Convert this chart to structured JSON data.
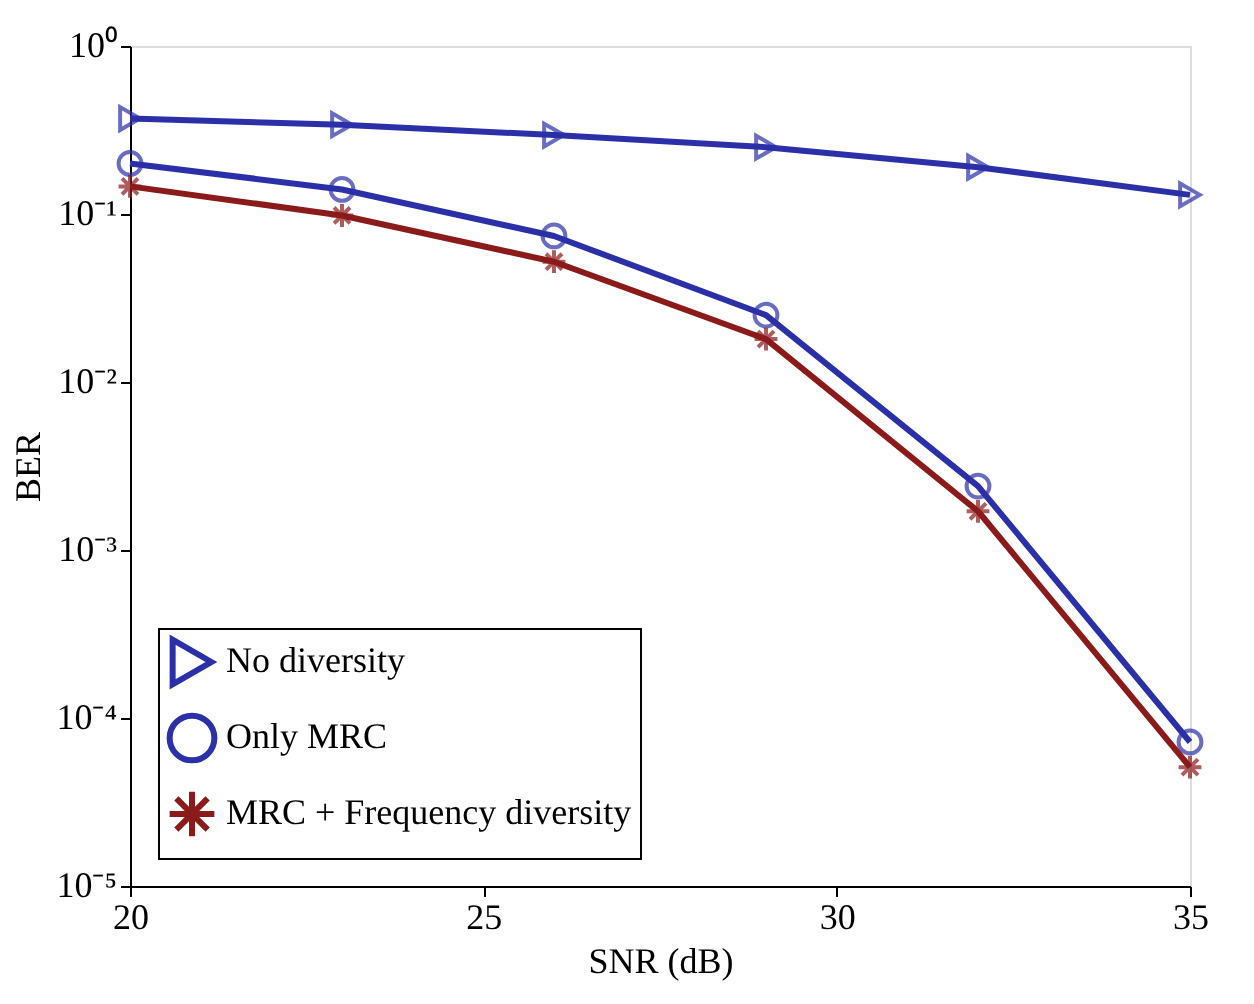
{
  "chart_data": {
    "type": "line",
    "xlabel": "SNR (dB)",
    "ylabel": "BER",
    "log": "y",
    "x": [
      20,
      23,
      26,
      29,
      32,
      35
    ],
    "series": [
      {
        "name": "No diversity",
        "color": "#2b2fa8",
        "marker": "triangle-right",
        "values": [
          0.37,
          0.34,
          0.295,
          0.25,
          0.19,
          0.13
        ]
      },
      {
        "name": "Only MRC",
        "color": "#2b2fa8",
        "marker": "circle",
        "values": [
          0.2,
          0.14,
          0.074,
          0.025,
          0.0024,
          7.2e-05
        ]
      },
      {
        "name": "MRC + Frequency diversity",
        "color": "#8b1a1a",
        "marker": "cross",
        "values": [
          0.146,
          0.098,
          0.052,
          0.018,
          0.0017,
          5.1e-05
        ]
      }
    ],
    "xlim": [
      20,
      35
    ],
    "xticks": [
      20,
      25,
      30,
      35
    ],
    "ylim": [
      1e-05,
      1
    ],
    "yticks": [
      {
        "value": 1,
        "label": "10⁰"
      },
      {
        "value": 0.1,
        "label": "10⁻¹"
      },
      {
        "value": 0.01,
        "label": "10⁻²"
      },
      {
        "value": 0.001,
        "label": "10⁻³"
      },
      {
        "value": 0.0001,
        "label": "10⁻⁴"
      },
      {
        "value": 1e-05,
        "label": "10⁻⁵"
      }
    ],
    "grid": false,
    "legend": "bottom left",
    "line_style": "solid"
  }
}
